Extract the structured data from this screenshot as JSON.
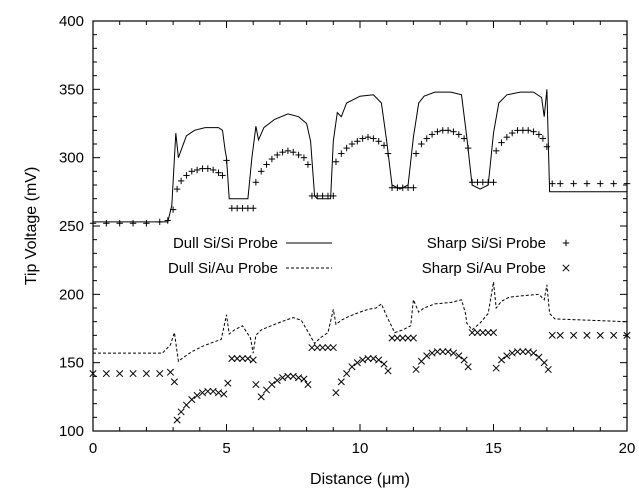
{
  "chart_data": {
    "type": "line",
    "title": "",
    "xlabel": "Distance (μm)",
    "ylabel": "Tip Voltage (mV)",
    "xlim": [
      0,
      20
    ],
    "ylim": [
      100,
      400
    ],
    "xticks": [
      0,
      5,
      10,
      15,
      20
    ],
    "yticks": [
      100,
      150,
      200,
      250,
      300,
      350,
      400
    ],
    "grid": false,
    "legend_placement": "middle",
    "series": [
      {
        "name": "Dull Si/Si Probe",
        "style": "solid",
        "x": [
          0,
          2.8,
          2.95,
          3.1,
          3.2,
          3.35,
          3.5,
          3.8,
          4.2,
          4.7,
          4.85,
          4.95,
          5.0,
          5.1,
          5.8,
          5.95,
          6.1,
          6.2,
          6.4,
          6.8,
          7.3,
          7.7,
          8.0,
          8.15,
          8.3,
          8.4,
          8.9,
          9.0,
          9.15,
          9.3,
          9.5,
          10.0,
          10.5,
          10.8,
          11.0,
          11.2,
          11.5,
          11.8,
          12.0,
          12.2,
          12.4,
          12.8,
          13.4,
          13.8,
          14.0,
          14.2,
          14.5,
          14.8,
          15.0,
          15.2,
          15.5,
          16.0,
          16.5,
          16.8,
          16.9,
          17.0,
          17.1,
          20
        ],
        "y": [
          253,
          253,
          265,
          318,
          300,
          308,
          316,
          320,
          322,
          322,
          320,
          305,
          300,
          270,
          270,
          300,
          323,
          313,
          322,
          328,
          332,
          330,
          325,
          312,
          272,
          270,
          270,
          312,
          333,
          330,
          340,
          345,
          346,
          340,
          312,
          280,
          277,
          280,
          315,
          340,
          345,
          348,
          348,
          346,
          315,
          280,
          277,
          280,
          318,
          340,
          346,
          348,
          348,
          344,
          330,
          350,
          275,
          275
        ]
      },
      {
        "name": "Dull Si/Au Probe",
        "style": "dashed",
        "x": [
          0,
          2.6,
          2.9,
          3.05,
          3.2,
          3.4,
          3.7,
          4.1,
          4.5,
          4.8,
          5.0,
          5.1,
          5.3,
          5.6,
          5.9,
          6.0,
          6.1,
          6.3,
          6.8,
          7.2,
          7.5,
          7.8,
          8.1,
          8.3,
          8.5,
          8.8,
          9.0,
          9.1,
          9.3,
          9.6,
          10.0,
          10.3,
          10.6,
          10.8,
          11.0,
          11.3,
          11.6,
          11.9,
          12.0,
          12.2,
          12.4,
          12.8,
          13.4,
          13.8,
          13.95,
          14.0,
          14.2,
          14.5,
          14.8,
          15.0,
          15.1,
          15.3,
          15.6,
          16.1,
          16.7,
          16.9,
          17.0,
          17.1,
          17.3,
          20
        ],
        "y": [
          157,
          157,
          163,
          172,
          151,
          154,
          158,
          162,
          165,
          167,
          185,
          171,
          174,
          177,
          168,
          157,
          170,
          174,
          178,
          181,
          183,
          181,
          171,
          164,
          168,
          172,
          189,
          178,
          181,
          184,
          187,
          189,
          190,
          193,
          184,
          172,
          174,
          177,
          196,
          187,
          190,
          193,
          194,
          196,
          186,
          179,
          174,
          179,
          186,
          209,
          190,
          195,
          198,
          199,
          200,
          196,
          207,
          186,
          182,
          180
        ]
      },
      {
        "name": "Sharp Si/Si Probe",
        "style": "marker-plus",
        "x": [
          0,
          0.5,
          1.0,
          1.5,
          2.0,
          2.5,
          2.8,
          3.0,
          3.15,
          3.3,
          3.5,
          3.7,
          3.9,
          4.1,
          4.3,
          4.5,
          4.7,
          4.85,
          5.0,
          5.2,
          5.4,
          5.6,
          5.8,
          6.0,
          6.1,
          6.3,
          6.5,
          6.7,
          6.9,
          7.1,
          7.3,
          7.5,
          7.7,
          7.9,
          8.05,
          8.2,
          8.4,
          8.6,
          8.8,
          9.0,
          9.1,
          9.3,
          9.5,
          9.7,
          9.9,
          10.1,
          10.3,
          10.5,
          10.7,
          10.9,
          11.05,
          11.2,
          11.4,
          11.6,
          11.8,
          12.0,
          12.1,
          12.3,
          12.5,
          12.7,
          12.9,
          13.1,
          13.3,
          13.5,
          13.7,
          13.9,
          14.05,
          14.2,
          14.4,
          14.6,
          14.8,
          15.0,
          15.1,
          15.3,
          15.5,
          15.7,
          15.9,
          16.1,
          16.3,
          16.5,
          16.7,
          16.85,
          17.0,
          17.2,
          17.5,
          18.0,
          18.5,
          19.0,
          19.5,
          20
        ],
        "y": [
          252,
          252,
          252,
          252,
          252,
          253,
          254,
          262,
          277,
          283,
          287,
          290,
          291,
          292,
          292,
          291,
          289,
          287,
          298,
          263,
          263,
          263,
          263,
          263,
          282,
          290,
          295,
          299,
          302,
          304,
          305,
          304,
          302,
          300,
          295,
          272,
          272,
          272,
          272,
          272,
          297,
          303,
          307,
          310,
          312,
          314,
          315,
          314,
          312,
          309,
          303,
          278,
          278,
          278,
          278,
          278,
          303,
          310,
          314,
          317,
          319,
          320,
          320,
          319,
          317,
          314,
          307,
          282,
          282,
          282,
          282,
          282,
          305,
          311,
          315,
          318,
          320,
          320,
          320,
          319,
          317,
          314,
          308,
          281,
          281,
          281,
          281,
          281,
          281,
          281
        ]
      },
      {
        "name": "Sharp Si/Au Probe",
        "style": "marker-x",
        "x": [
          0,
          0.5,
          1.0,
          1.5,
          2.0,
          2.5,
          2.9,
          3.05,
          3.15,
          3.3,
          3.5,
          3.7,
          3.9,
          4.1,
          4.3,
          4.5,
          4.7,
          4.9,
          5.05,
          5.2,
          5.4,
          5.6,
          5.8,
          6.0,
          6.1,
          6.3,
          6.5,
          6.7,
          6.9,
          7.1,
          7.3,
          7.5,
          7.7,
          7.9,
          8.05,
          8.2,
          8.4,
          8.6,
          8.8,
          9.0,
          9.1,
          9.3,
          9.5,
          9.7,
          9.9,
          10.1,
          10.3,
          10.5,
          10.7,
          10.9,
          11.05,
          11.2,
          11.4,
          11.6,
          11.8,
          12.0,
          12.1,
          12.3,
          12.5,
          12.7,
          12.9,
          13.1,
          13.3,
          13.5,
          13.7,
          13.9,
          14.05,
          14.2,
          14.4,
          14.6,
          14.8,
          15.0,
          15.1,
          15.3,
          15.5,
          15.7,
          15.9,
          16.1,
          16.3,
          16.5,
          16.7,
          16.9,
          17.05,
          17.2,
          17.5,
          18.0,
          18.5,
          19.0,
          19.5,
          20
        ],
        "y": [
          142,
          142,
          142,
          142,
          142,
          142,
          143,
          136,
          108,
          114,
          119,
          123,
          126,
          128,
          129,
          129,
          128,
          127,
          135,
          153,
          153,
          153,
          153,
          152,
          134,
          125,
          130,
          134,
          137,
          139,
          140,
          140,
          139,
          138,
          134,
          161,
          161,
          161,
          161,
          161,
          128,
          136,
          142,
          147,
          150,
          152,
          153,
          153,
          152,
          149,
          144,
          168,
          168,
          168,
          168,
          168,
          145,
          151,
          155,
          157,
          158,
          158,
          158,
          157,
          155,
          152,
          147,
          172,
          172,
          172,
          172,
          172,
          146,
          152,
          155,
          157,
          158,
          158,
          158,
          157,
          154,
          150,
          145,
          170,
          170,
          170,
          170,
          170,
          170,
          170
        ]
      }
    ]
  }
}
